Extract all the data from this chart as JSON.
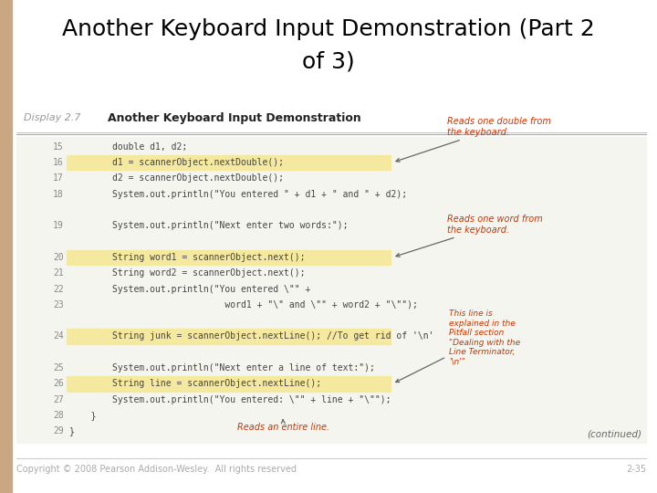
{
  "title": "Another Keyboard Input Demonstration (Part 2\nof 3)",
  "title_fontsize": 18,
  "title_color": "#000000",
  "bg_color": "#ffffff",
  "left_bar_color": "#c8a882",
  "footer_text": "Copyright © 2008 Pearson Addison-Wesley.  All rights reserved",
  "footer_right": "2-35",
  "footer_color": "#aaaaaa",
  "display_label": "Display 2.7",
  "display_title": "Another Keyboard Input Demonstration",
  "code_bg": "#f5f5f0",
  "highlight_color": "#f5e9a0",
  "line_num_color": "#888888",
  "code_color": "#444444",
  "annotation_color": "#cc3300",
  "lines": [
    {
      "num": "15",
      "code": "        double d1, d2;",
      "highlight": false
    },
    {
      "num": "16",
      "code": "        d1 = scannerObject.nextDouble();",
      "highlight": true
    },
    {
      "num": "17",
      "code": "        d2 = scannerObject.nextDouble();",
      "highlight": false
    },
    {
      "num": "18",
      "code": "        System.out.println(\"You entered \" + d1 + \" and \" + d2);",
      "highlight": false
    },
    {
      "num": "",
      "code": "",
      "highlight": false
    },
    {
      "num": "19",
      "code": "        System.out.println(\"Next enter two words:\");",
      "highlight": false
    },
    {
      "num": "",
      "code": "",
      "highlight": false
    },
    {
      "num": "20",
      "code": "        String word1 = scannerObject.next();",
      "highlight": true
    },
    {
      "num": "21",
      "code": "        String word2 = scannerObject.next();",
      "highlight": false
    },
    {
      "num": "22",
      "code": "        System.out.println(\"You entered \\\"\" +",
      "highlight": false
    },
    {
      "num": "23",
      "code": "                             word1 + \"\\\" and \\\"\" + word2 + \"\\\"\");",
      "highlight": false
    },
    {
      "num": "",
      "code": "",
      "highlight": false
    },
    {
      "num": "24",
      "code": "        String junk = scannerObject.nextLine(); //To get rid of '\\n'",
      "highlight": true
    },
    {
      "num": "",
      "code": "",
      "highlight": false
    },
    {
      "num": "25",
      "code": "        System.out.println(\"Next enter a line of text:\");",
      "highlight": false
    },
    {
      "num": "26",
      "code": "        String line = scannerObject.nextLine();",
      "highlight": true
    },
    {
      "num": "27",
      "code": "        System.out.println(\"You entered: \\\"\" + line + \"\\\"\");",
      "highlight": false
    },
    {
      "num": "28",
      "code": "    }",
      "highlight": false
    },
    {
      "num": "29",
      "code": "}",
      "highlight": false
    }
  ]
}
